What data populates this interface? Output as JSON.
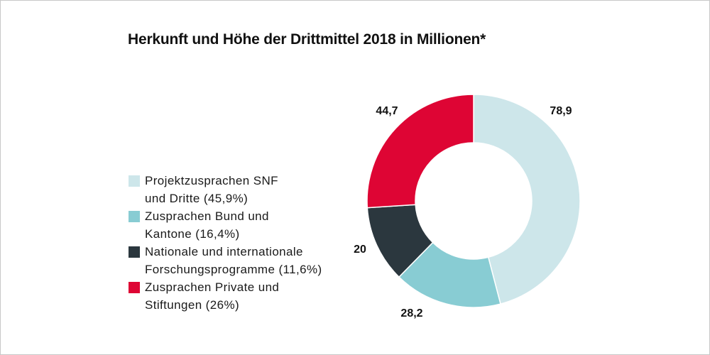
{
  "chart_data": {
    "type": "pie",
    "variant": "donut",
    "title": "Herkunft und Höhe der Drittmittel 2018 in Millionen*",
    "start": "top",
    "direction": "clockwise",
    "legend_position": "left",
    "series": [
      {
        "name": "Projektzusprachen SNF und Dritte (45,9%)",
        "legend_lines": [
          "Projektzusprachen SNF",
          "und Dritte (45,9%)"
        ],
        "value": 78.9,
        "label": "78,9",
        "percent": 45.9,
        "color": "#cde6ea"
      },
      {
        "name": "Zusprachen Bund und Kantone (16,4%)",
        "legend_lines": [
          "Zusprachen Bund und",
          "Kantone (16,4%)"
        ],
        "value": 28.2,
        "label": "28,2",
        "percent": 16.4,
        "color": "#88ccd3"
      },
      {
        "name": "Nationale und internationale Forschungsprogramme (11,6%)",
        "legend_lines": [
          "Nationale und internationale",
          "Forschungsprogramme (11,6%)"
        ],
        "value": 20,
        "label": "20",
        "percent": 11.6,
        "color": "#2b373e"
      },
      {
        "name": "Zusprachen Private und Stiftungen (26%)",
        "legend_lines": [
          "Zusprachen Private und",
          "Stiftungen (26%)"
        ],
        "value": 44.7,
        "label": "44,7",
        "percent": 26,
        "color": "#de0534"
      }
    ]
  }
}
